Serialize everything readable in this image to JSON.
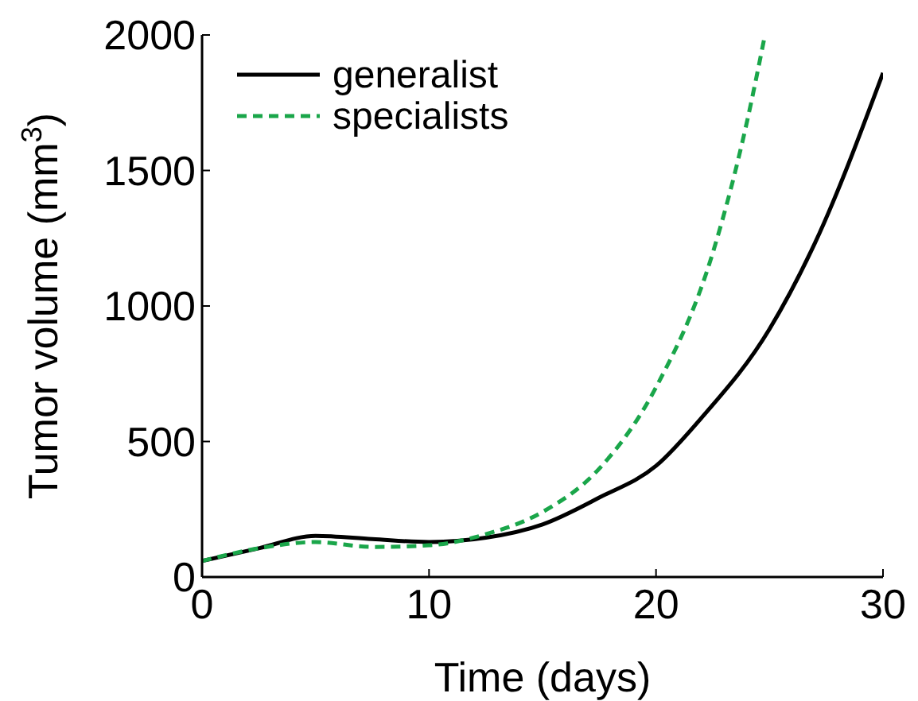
{
  "chart_data": {
    "type": "line",
    "xlabel": "Time (days)",
    "ylabel": "Tumor volume  (mm$^{3}$)",
    "xlim": [
      0,
      30
    ],
    "ylim": [
      0,
      2000
    ],
    "xticks": [
      0,
      10,
      20,
      30
    ],
    "yticks": [
      0,
      500,
      1000,
      1500,
      2000
    ],
    "grid": false,
    "legend": "top left",
    "series": [
      {
        "name": "generalist",
        "color": "#000000",
        "line_style": "solid",
        "x": [
          0,
          2.5,
          5,
          7.5,
          10,
          12.5,
          15,
          17.5,
          20,
          22,
          25,
          27,
          30
        ],
        "values": [
          59,
          106,
          152,
          140,
          129,
          145,
          194,
          293,
          410,
          587,
          915,
          1232,
          1860
        ]
      },
      {
        "name": "specialists",
        "color": "#1aa64a",
        "line_style": "dashed",
        "x": [
          0,
          2.5,
          5,
          7.5,
          10,
          12.5,
          15,
          17.5,
          20,
          22.5,
          24,
          24.8
        ],
        "values": [
          59,
          106,
          129,
          111,
          117,
          158,
          240,
          400,
          700,
          1196,
          1677,
          2000
        ]
      }
    ]
  }
}
